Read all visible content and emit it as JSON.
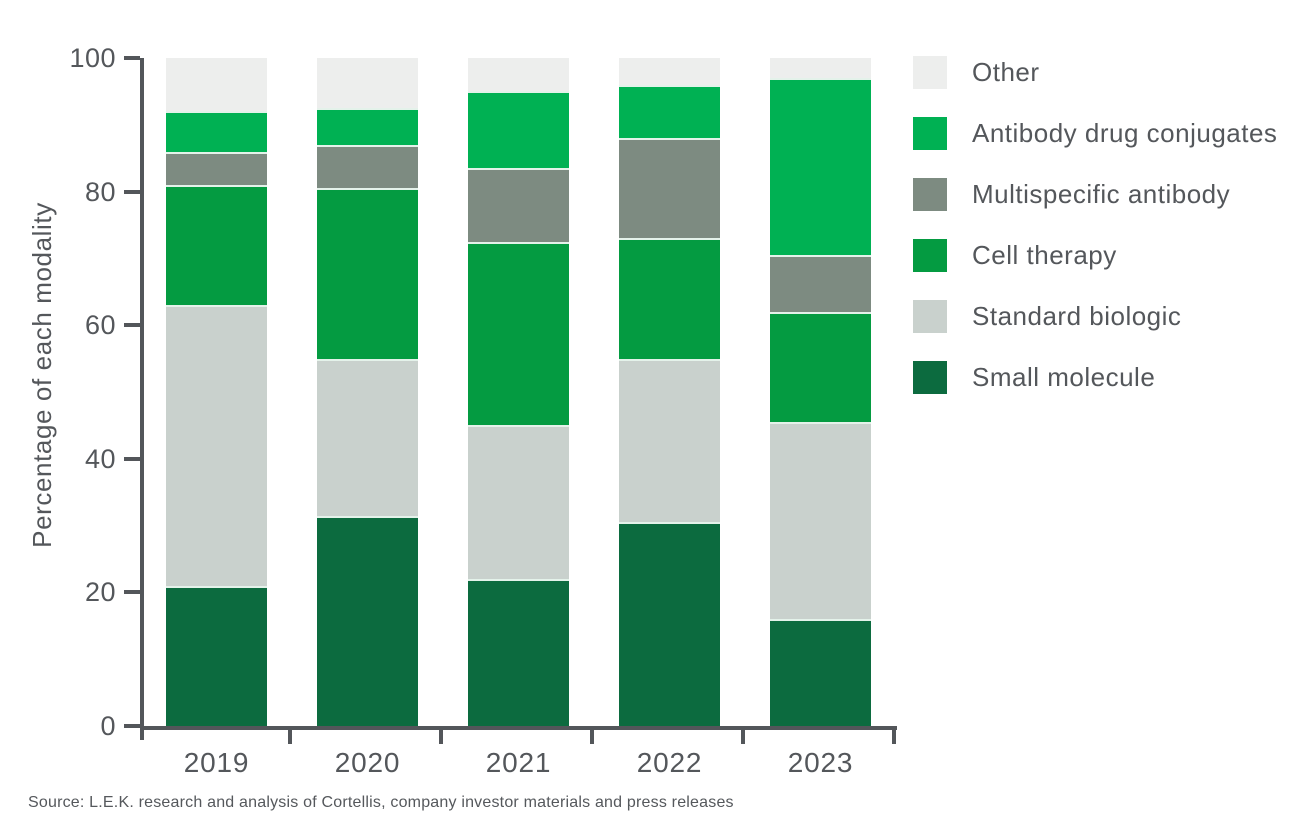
{
  "chart_data": {
    "type": "bar",
    "stacked": true,
    "categories": [
      "2019",
      "2020",
      "2021",
      "2022",
      "2023"
    ],
    "series": [
      {
        "name": "Small molecule",
        "color": "#0C6B3F",
        "values": [
          21,
          31.5,
          22,
          30.5,
          16
        ]
      },
      {
        "name": "Standard biologic",
        "color": "#C9D1CD",
        "values": [
          42,
          23.5,
          23,
          24.5,
          29.5
        ]
      },
      {
        "name": "Cell therapy",
        "color": "#049B41",
        "values": [
          18,
          25.5,
          27.5,
          18,
          16.5
        ]
      },
      {
        "name": "Multispecific antibody",
        "color": "#7D8B81",
        "values": [
          5,
          6.5,
          11,
          15,
          8.5
        ]
      },
      {
        "name": "Antibody drug conjugates",
        "color": "#00B153",
        "values": [
          6,
          5.5,
          11.5,
          8,
          26.5
        ]
      },
      {
        "name": "Other",
        "color": "#EDEEED",
        "values": [
          8,
          7.5,
          5,
          4,
          3
        ]
      }
    ],
    "ylabel": "Percentage of each modality",
    "yticks": [
      0,
      20,
      40,
      60,
      80,
      100
    ],
    "ylim": [
      0,
      100
    ],
    "grid": false,
    "legend_position": "right",
    "legend_order_top_to_bottom": [
      "Other",
      "Antibody drug conjugates",
      "Multispecific antibody",
      "Cell therapy",
      "Standard biologic",
      "Small molecule"
    ]
  },
  "source": {
    "text": "Source: L.E.K. research and analysis of Cortellis, company investor materials and press releases"
  },
  "colors": {
    "axis": "#53565A",
    "text": "#54575B",
    "segment_separator": "#E4F2EA"
  }
}
